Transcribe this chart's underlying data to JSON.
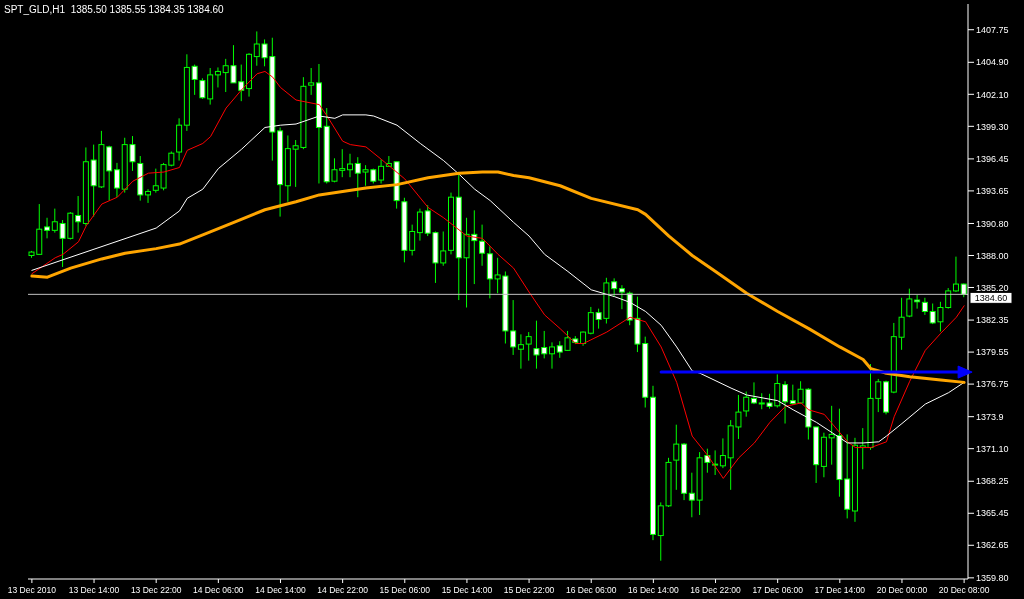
{
  "chart_data": {
    "type": "candlestick",
    "title": "SPT_GLD,H1  1385.50 1385.55 1384.35 1384.60",
    "color": "#00ff00",
    "categories": [
      "13 Dec 2010",
      null,
      null,
      null,
      null,
      null,
      null,
      null,
      "13 Dec 14:00",
      null,
      null,
      null,
      null,
      null,
      null,
      null,
      "13 Dec 22:00",
      null,
      null,
      null,
      null,
      null,
      null,
      null,
      "14 Dec 06:00",
      null,
      null,
      null,
      null,
      null,
      null,
      null,
      "14 Dec 14:00",
      null,
      null,
      null,
      null,
      null,
      null,
      null,
      "14 Dec 22:00",
      null,
      null,
      null,
      null,
      null,
      null,
      null,
      "15 Dec 06:00",
      null,
      null,
      null,
      null,
      null,
      null,
      null,
      "15 Dec 14:00",
      null,
      null,
      null,
      null,
      null,
      null,
      null,
      "15 Dec 22:00",
      null,
      null,
      null,
      null,
      null,
      null,
      null,
      "16 Dec 06:00",
      null,
      null,
      null,
      null,
      null,
      null,
      null,
      "16 Dec 14:00",
      null,
      null,
      null,
      null,
      null,
      null,
      null,
      "16 Dec 22:00",
      null,
      null,
      null,
      null,
      null,
      null,
      null,
      "17 Dec 06:00",
      null,
      null,
      null,
      null,
      null,
      null,
      null,
      "17 Dec 14:00",
      null,
      null,
      null,
      null,
      null,
      null,
      null,
      "20 Dec 00:00",
      null,
      null,
      null,
      null,
      null,
      null,
      null,
      "20 Dec 08:00"
    ],
    "ohlc": [
      [
        1388.0,
        1388.4,
        1387.8,
        1388.3
      ],
      [
        1388.1,
        1392.5,
        1388.1,
        1390.3
      ],
      [
        1390.5,
        1391.3,
        1389.5,
        1390.2
      ],
      [
        1390.2,
        1392.1,
        1390.0,
        1390.95
      ],
      [
        1390.8,
        1391.1,
        1387.0,
        1389.5
      ],
      [
        1389.5,
        1391.8,
        1389.4,
        1391.7
      ],
      [
        1391.5,
        1393.2,
        1390.0,
        1390.95
      ],
      [
        1390.8,
        1397.45,
        1390.6,
        1396.2
      ],
      [
        1396.35,
        1397.7,
        1391.4,
        1394.1
      ],
      [
        1394.0,
        1398.9,
        1393.9,
        1397.7
      ],
      [
        1397.5,
        1397.6,
        1392.8,
        1395.4
      ],
      [
        1395.5,
        1396.1,
        1393.1,
        1393.9
      ],
      [
        1393.8,
        1398.3,
        1393.5,
        1397.7
      ],
      [
        1397.7,
        1398.45,
        1395.4,
        1396.2
      ],
      [
        1396.05,
        1396.7,
        1392.8,
        1393.3
      ],
      [
        1393.3,
        1393.8,
        1392.6,
        1393.6
      ],
      [
        1393.7,
        1395.6,
        1393.5,
        1394.1
      ],
      [
        1393.9,
        1396.1,
        1393.7,
        1395.95
      ],
      [
        1395.9,
        1397.1,
        1395.8,
        1396.95
      ],
      [
        1397.05,
        1400.0,
        1396.3,
        1399.4
      ],
      [
        1399.4,
        1405.6,
        1398.9,
        1404.45
      ],
      [
        1404.55,
        1404.7,
        1402.05,
        1403.4
      ],
      [
        1403.3,
        1403.5,
        1401.7,
        1401.8
      ],
      [
        1401.7,
        1404.4,
        1401.2,
        1403.8
      ],
      [
        1403.8,
        1404.45,
        1402.7,
        1404.1
      ],
      [
        1404.0,
        1405.2,
        1402.3,
        1404.6
      ],
      [
        1404.6,
        1406.4,
        1403.1,
        1403.1
      ],
      [
        1403.2,
        1404.7,
        1401.5,
        1402.45
      ],
      [
        1402.6,
        1405.7,
        1401.9,
        1405.6
      ],
      [
        1405.4,
        1407.6,
        1404.6,
        1406.5
      ],
      [
        1406.5,
        1406.9,
        1404.55,
        1405.3
      ],
      [
        1405.4,
        1407.05,
        1396.3,
        1398.8
      ],
      [
        1398.9,
        1399.2,
        1391.4,
        1394.2
      ],
      [
        1394.1,
        1398.5,
        1392.7,
        1397.35
      ],
      [
        1397.3,
        1398.1,
        1394.0,
        1397.6
      ],
      [
        1397.45,
        1403.6,
        1397.3,
        1402.8
      ],
      [
        1402.9,
        1404.4,
        1402.05,
        1403.1
      ],
      [
        1403.1,
        1404.75,
        1394.3,
        1399.2
      ],
      [
        1399.3,
        1400.9,
        1394.3,
        1394.45
      ],
      [
        1394.5,
        1396.5,
        1394.4,
        1395.5
      ],
      [
        1395.45,
        1397.3,
        1394.85,
        1395.6
      ],
      [
        1395.5,
        1396.9,
        1394.85,
        1396.0
      ],
      [
        1396.05,
        1396.6,
        1393.1,
        1395.2
      ],
      [
        1395.3,
        1395.9,
        1394.1,
        1395.5
      ],
      [
        1395.5,
        1395.6,
        1394.3,
        1394.5
      ],
      [
        1394.6,
        1396.4,
        1394.3,
        1395.8
      ],
      [
        1395.8,
        1396.7,
        1395.8,
        1396.05
      ],
      [
        1396.2,
        1396.2,
        1392.1,
        1392.8
      ],
      [
        1392.7,
        1393.05,
        1387.4,
        1388.45
      ],
      [
        1388.45,
        1390.7,
        1388.0,
        1390.1
      ],
      [
        1390.0,
        1392.1,
        1389.3,
        1391.8
      ],
      [
        1391.9,
        1392.4,
        1389.7,
        1389.95
      ],
      [
        1390.0,
        1390.1,
        1385.6,
        1387.35
      ],
      [
        1387.35,
        1390.1,
        1387.1,
        1388.4
      ],
      [
        1388.45,
        1393.5,
        1388.1,
        1393.1
      ],
      [
        1393.1,
        1395.1,
        1384.1,
        1387.8
      ],
      [
        1387.8,
        1391.3,
        1383.45,
        1389.85
      ],
      [
        1389.85,
        1391.95,
        1385.5,
        1389.3
      ],
      [
        1389.25,
        1390.7,
        1387.1,
        1388.2
      ],
      [
        1388.15,
        1388.8,
        1384.25,
        1385.95
      ],
      [
        1385.95,
        1387.8,
        1384.7,
        1386.3
      ],
      [
        1386.2,
        1386.6,
        1380.3,
        1381.4
      ],
      [
        1381.4,
        1384.1,
        1379.3,
        1380.0
      ],
      [
        1379.8,
        1381.1,
        1378.1,
        1380.2
      ],
      [
        1380.25,
        1381.3,
        1378.8,
        1380.9
      ],
      [
        1379.85,
        1382.3,
        1378.1,
        1379.3
      ],
      [
        1379.95,
        1381.4,
        1379.0,
        1379.4
      ],
      [
        1379.4,
        1380.4,
        1378.1,
        1380.0
      ],
      [
        1380.1,
        1380.5,
        1379.05,
        1379.55
      ],
      [
        1379.7,
        1381.4,
        1379.65,
        1380.8
      ],
      [
        1380.7,
        1380.95,
        1380.25,
        1380.4
      ],
      [
        1380.3,
        1381.35,
        1380.1,
        1381.3
      ],
      [
        1381.2,
        1383.5,
        1381.1,
        1383.0
      ],
      [
        1383.0,
        1383.35,
        1381.6,
        1382.4
      ],
      [
        1382.5,
        1386.05,
        1382.05,
        1385.6
      ],
      [
        1385.7,
        1386.0,
        1384.4,
        1385.1
      ],
      [
        1385.1,
        1385.4,
        1383.3,
        1384.8
      ],
      [
        1384.7,
        1384.85,
        1381.9,
        1382.35
      ],
      [
        1382.5,
        1384.4,
        1379.55,
        1380.25
      ],
      [
        1380.3,
        1380.9,
        1374.7,
        1375.6
      ],
      [
        1375.6,
        1376.6,
        1363.1,
        1363.6
      ],
      [
        1363.5,
        1366.4,
        1361.3,
        1366.1
      ],
      [
        1366.1,
        1370.3,
        1366.0,
        1369.9
      ],
      [
        1370.1,
        1373.2,
        1367.5,
        1371.5
      ],
      [
        1371.5,
        1371.6,
        1366.6,
        1367.2
      ],
      [
        1367.2,
        1369.0,
        1365.1,
        1366.6
      ],
      [
        1366.6,
        1370.8,
        1365.3,
        1370.3
      ],
      [
        1370.5,
        1371.1,
        1369.0,
        1369.9
      ],
      [
        1369.7,
        1370.95,
        1368.8,
        1369.75
      ],
      [
        1369.6,
        1372.0,
        1369.4,
        1370.5
      ],
      [
        1370.3,
        1373.6,
        1367.5,
        1373.1
      ],
      [
        1373.0,
        1375.8,
        1371.95,
        1374.3
      ],
      [
        1374.4,
        1376.1,
        1373.9,
        1375.6
      ],
      [
        1375.5,
        1376.9,
        1375.0,
        1375.1
      ],
      [
        1375.05,
        1375.95,
        1374.55,
        1375.1
      ],
      [
        1375.1,
        1375.9,
        1374.6,
        1374.8
      ],
      [
        1374.85,
        1377.6,
        1374.7,
        1376.8
      ],
      [
        1376.7,
        1377.0,
        1373.3,
        1375.2
      ],
      [
        1375.3,
        1376.7,
        1374.95,
        1375.05
      ],
      [
        1375.1,
        1377.0,
        1375.05,
        1376.3
      ],
      [
        1376.3,
        1376.4,
        1371.9,
        1373.0
      ],
      [
        1373.0,
        1373.0,
        1368.1,
        1369.7
      ],
      [
        1369.55,
        1372.5,
        1368.6,
        1372.1
      ],
      [
        1372.05,
        1374.85,
        1369.7,
        1372.35
      ],
      [
        1372.25,
        1374.6,
        1366.9,
        1368.4
      ],
      [
        1368.45,
        1372.35,
        1365.0,
        1365.8
      ],
      [
        1365.65,
        1372.05,
        1364.7,
        1371.4
      ],
      [
        1371.2,
        1372.9,
        1369.3,
        1371.35
      ],
      [
        1371.2,
        1378.5,
        1371.0,
        1375.5
      ],
      [
        1375.5,
        1377.2,
        1374.3,
        1376.95
      ],
      [
        1376.95,
        1377.05,
        1374.1,
        1374.3
      ],
      [
        1376.05,
        1382.1,
        1375.95,
        1380.9
      ],
      [
        1380.85,
        1384.3,
        1379.75,
        1382.6
      ],
      [
        1382.7,
        1385.1,
        1382.6,
        1384.2
      ],
      [
        1384.1,
        1384.55,
        1383.35,
        1383.95
      ],
      [
        1383.9,
        1384.3,
        1382.8,
        1383.1
      ],
      [
        1383.1,
        1383.8,
        1382.0,
        1382.1
      ],
      [
        1382.2,
        1383.95,
        1381.35,
        1383.45
      ],
      [
        1383.45,
        1385.15,
        1383.35,
        1384.9
      ],
      [
        1384.9,
        1387.9,
        1384.8,
        1385.5
      ],
      [
        1385.5,
        1385.55,
        1384.35,
        1384.6
      ]
    ],
    "series": [
      {
        "type": "line",
        "color": "#ff0000",
        "values": [
          1386.4,
          null,
          null,
          1387.8,
          1388.1,
          null,
          1389.2,
          1390.6,
          null,
          1392.5,
          null,
          1393.1,
          null,
          1394.5,
          null,
          1395.2,
          null,
          1395.3,
          null,
          1395.7,
          1397.2,
          null,
          1397.8,
          1398.4,
          null,
          1400.9,
          null,
          1402.5,
          null,
          1403.9,
          1404.1,
          1403.6,
          1402.7,
          null,
          1401.6,
          null,
          null,
          1401.2,
          1400.2,
          null,
          1398.0,
          1397.7,
          null,
          1397.5,
          null,
          1396.4,
          null,
          null,
          1394.7,
          null,
          null,
          1392.2,
          null,
          1391.3,
          null,
          null,
          1389.7,
          null,
          1389.5,
          null,
          1388.1,
          null,
          1386.9,
          null,
          1384.8,
          null,
          1382.8,
          null,
          1381.6,
          null,
          1380.3,
          1380.3,
          null,
          null,
          1381.3,
          null,
          null,
          1382.6,
          null,
          1382.2,
          null,
          1380.0,
          null,
          1376.9,
          null,
          1372.2,
          null,
          1370.5,
          null,
          1368.5,
          null,
          1370.3,
          null,
          1371.6,
          null,
          1373.4,
          null,
          1374.8,
          null,
          1375.1,
          1374.5,
          null,
          1374.1,
          null,
          1372.5,
          1371.7,
          1371.2,
          null,
          1371.2,
          null,
          1371.7,
          1373.9,
          null,
          1377.0,
          null,
          1379.7,
          null,
          1381.2,
          null,
          1382.6,
          1383.6
        ]
      },
      {
        "type": "line",
        "color": "#ffffff",
        "values": [
          1386.7,
          null,
          null,
          null,
          null,
          null,
          null,
          null,
          null,
          null,
          null,
          null,
          null,
          null,
          null,
          null,
          1390.4,
          null,
          null,
          1391.9,
          1393.0,
          null,
          1393.8,
          null,
          1395.6,
          null,
          null,
          1397.3,
          null,
          null,
          1399.2,
          null,
          1399.4,
          null,
          1399.5,
          null,
          null,
          1400.2,
          null,
          1400.0,
          1400.3,
          null,
          null,
          1400.3,
          1400.2,
          null,
          null,
          1399.4,
          null,
          null,
          1397.8,
          null,
          null,
          1396.3,
          null,
          1395.1,
          null,
          1393.8,
          null,
          1392.8,
          null,
          null,
          1390.9,
          null,
          1389.7,
          null,
          1388.1,
          null,
          null,
          1386.6,
          null,
          null,
          1385.0,
          null,
          null,
          1384.4,
          null,
          1383.9,
          null,
          1383.1,
          null,
          1381.9,
          null,
          1380.0,
          null,
          1377.9,
          1377.7,
          null,
          null,
          null,
          1376.4,
          null,
          1375.8,
          null,
          null,
          null,
          1375.3,
          null,
          1374.5,
          null,
          null,
          1373.4,
          null,
          1372.5,
          null,
          1371.6,
          null,
          1371.6,
          null,
          1371.7,
          1372.2,
          null,
          1373.3,
          null,
          null,
          1375.0,
          null,
          null,
          1376.0,
          null,
          1376.9
        ]
      },
      {
        "type": "line",
        "color": "#ffa500",
        "values": [
          1386.2,
          null,
          1386.1,
          null,
          null,
          1386.9,
          null,
          null,
          null,
          1387.7,
          null,
          null,
          1388.2,
          null,
          null,
          null,
          1388.6,
          null,
          null,
          1389.0,
          null,
          null,
          1389.8,
          null,
          null,
          null,
          1390.9,
          null,
          null,
          null,
          1392.0,
          null,
          null,
          null,
          1392.7,
          null,
          null,
          1393.3,
          null,
          null,
          1393.6,
          null,
          null,
          1393.9,
          null,
          null,
          null,
          1394.2,
          null,
          null,
          null,
          1394.8,
          null,
          null,
          null,
          1395.2,
          null,
          null,
          1395.3,
          null,
          1395.3,
          null,
          1395.0,
          null,
          1394.8,
          null,
          null,
          null,
          1394.1,
          null,
          null,
          null,
          1393.0,
          null,
          null,
          null,
          null,
          null,
          1392.0,
          1391.6,
          null,
          null,
          1389.7,
          null,
          null,
          1388.0,
          null,
          null,
          1386.6,
          null,
          null,
          null,
          1384.7,
          null,
          null,
          null,
          1383.1,
          null,
          null,
          null,
          1381.6,
          null,
          null,
          null,
          1380.0,
          null,
          null,
          1378.9,
          1378.1,
          null,
          1377.7,
          null,
          null,
          1377.4,
          null,
          null,
          null,
          1377.1,
          null,
          null,
          1376.9
        ]
      },
      {
        "type": "line",
        "color": "#0000ff",
        "values": [
          null,
          null,
          null,
          null,
          null,
          null,
          null,
          null,
          null,
          null,
          null,
          null,
          null,
          null,
          null,
          null,
          null,
          null,
          null,
          null,
          null,
          null,
          null,
          null,
          null,
          null,
          null,
          null,
          null,
          null,
          null,
          null,
          null,
          null,
          null,
          null,
          null,
          null,
          null,
          null,
          null,
          null,
          null,
          null,
          null,
          null,
          null,
          null,
          null,
          null,
          null,
          null,
          null,
          null,
          null,
          null,
          null,
          null,
          null,
          null,
          null,
          null,
          null,
          null,
          null,
          null,
          null,
          null,
          null,
          null,
          null,
          null,
          null,
          null,
          null,
          null,
          null,
          null,
          null,
          null,
          null,
          1377.8,
          null,
          null,
          null,
          null,
          null,
          null,
          null,
          null,
          null,
          null,
          null,
          null,
          null,
          null,
          null,
          null,
          null,
          null,
          null,
          null,
          null,
          null,
          null,
          null,
          null,
          null,
          null,
          null,
          null,
          null,
          null,
          null,
          null,
          null,
          null,
          null,
          null,
          null,
          1377.8
        ]
      }
    ],
    "ref_lines": [
      {
        "axis": "y",
        "value": 1384.6,
        "label": "1384.60",
        "color": "#c0c0c0"
      }
    ],
    "ylim": [
      1359.7,
      1410.0
    ],
    "yticks": [
      {
        "value": 1359.8,
        "label": "1359.80"
      },
      1362.65,
      1365.45,
      1368.25,
      {
        "value": 1371.1,
        "label": "1371.10"
      },
      1373.9,
      1376.75,
      1379.55,
      1382.35,
      {
        "value": 1385.2,
        "label": "1385.20"
      },
      {
        "value": 1388,
        "label": "1388.00"
      },
      {
        "value": 1390.8,
        "label": "1390.80"
      },
      1393.65,
      1396.45,
      {
        "value": 1399.3,
        "label": "1399.30"
      },
      {
        "value": 1402.1,
        "label": "1402.10"
      },
      {
        "value": 1404.9,
        "label": "1404.90"
      },
      1407.75
    ],
    "grid": false
  }
}
